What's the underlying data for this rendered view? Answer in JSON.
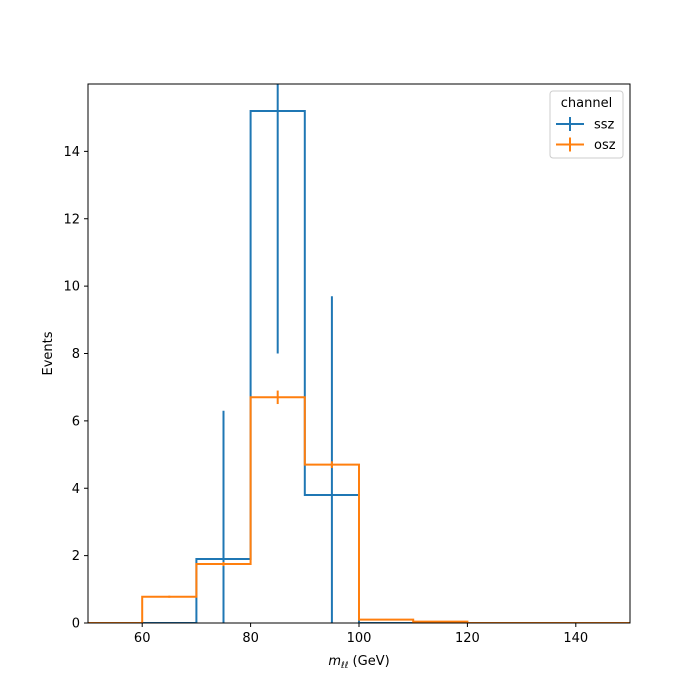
{
  "chart_data": {
    "type": "step",
    "title": "",
    "xlabel": {
      "symbol": "m",
      "subscript": "ℓℓ",
      "unit": " (GeV)"
    },
    "ylabel": "Events",
    "xlim": [
      50,
      150
    ],
    "ylim": [
      0,
      16
    ],
    "x_ticks": [
      60,
      80,
      100,
      120,
      140
    ],
    "y_ticks": [
      0,
      2,
      4,
      6,
      8,
      10,
      12,
      14
    ],
    "bin_edges": [
      50,
      60,
      70,
      80,
      90,
      100,
      110,
      120,
      130,
      140,
      150
    ],
    "legend": {
      "title": "channel",
      "placement": "top-right"
    },
    "series": [
      {
        "name": "ssz",
        "color": "#1f77b4",
        "values": [
          0,
          0,
          1.9,
          15.2,
          3.8,
          0,
          0,
          0,
          0,
          0
        ],
        "errors": [
          0,
          0,
          4.4,
          7.2,
          5.9,
          0,
          0,
          0,
          0,
          0
        ]
      },
      {
        "name": "osz",
        "color": "#ff7f0e",
        "values": [
          0,
          0.78,
          1.75,
          6.7,
          4.7,
          0.1,
          0.04,
          0,
          0,
          0
        ],
        "errors": [
          0,
          0.03,
          0.06,
          0.2,
          0.1,
          0.02,
          0.01,
          0,
          0,
          0
        ]
      }
    ]
  }
}
